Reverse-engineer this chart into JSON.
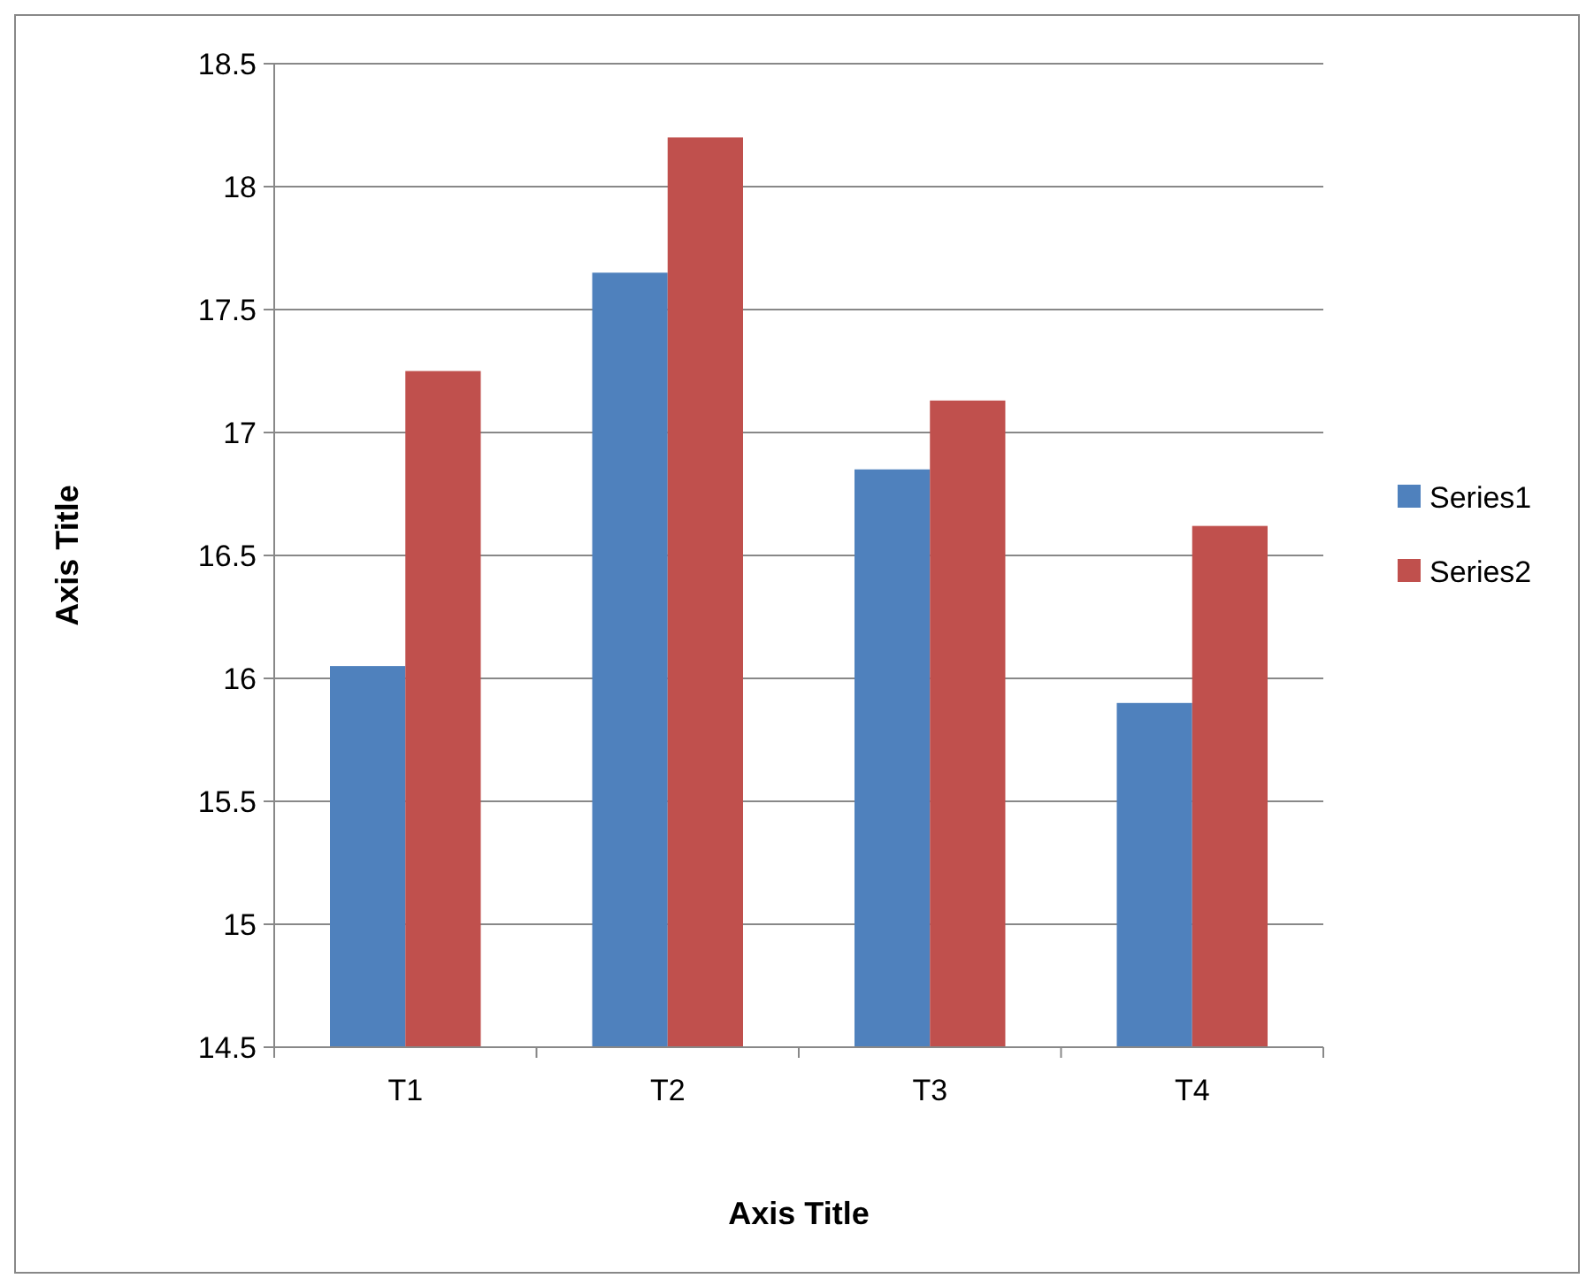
{
  "chart_data": {
    "type": "bar",
    "xlabel": "Axis Title",
    "ylabel": "Axis Title",
    "categories": [
      "T1",
      "T2",
      "T3",
      "T4"
    ],
    "series": [
      {
        "name": "Series1",
        "color": "#4f81bd",
        "values": [
          16.05,
          17.65,
          16.85,
          15.9
        ]
      },
      {
        "name": "Series2",
        "color": "#c0504d",
        "values": [
          17.25,
          18.2,
          17.13,
          16.62
        ]
      }
    ],
    "ylim": [
      14.5,
      18.5
    ],
    "yticks": [
      14.5,
      15,
      15.5,
      16,
      16.5,
      17,
      17.5,
      18,
      18.5
    ],
    "grid": "y",
    "legend": "right"
  }
}
